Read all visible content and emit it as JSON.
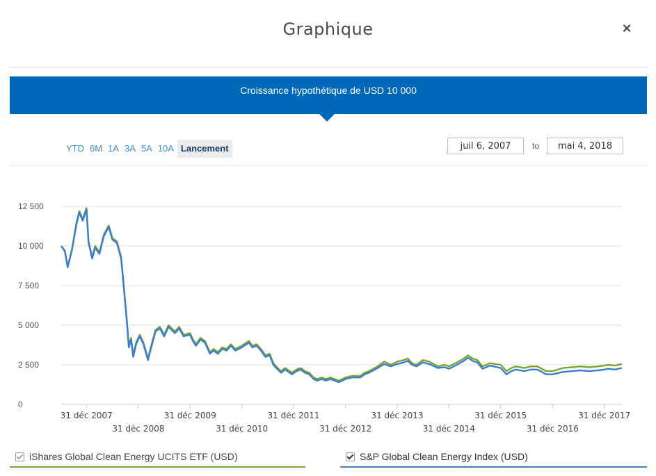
{
  "modal": {
    "title": "Graphique",
    "close_label": "×"
  },
  "banner": {
    "text": "Croissance hypothétique de USD 10 000"
  },
  "range_selector": {
    "buttons": [
      "YTD",
      "6M",
      "1A",
      "3A",
      "5A",
      "10A",
      "Lancement"
    ],
    "active": "Lancement"
  },
  "date_range": {
    "from": "juil 6, 2007",
    "to_label": "to",
    "to": "mai 4, 2018"
  },
  "legend": {
    "etf": {
      "label": "iShares Global Clean Energy UCITS ETF (USD)",
      "checked": true,
      "color": "#3a7ed1"
    },
    "index": {
      "label": "S&P Global Clean Energy Index (USD)",
      "checked": true,
      "color": "#7ba32d"
    }
  },
  "chart_data": {
    "type": "line",
    "title": "Croissance hypothétique de USD 10 000",
    "xlabel": "",
    "ylabel": "",
    "ylim": [
      0,
      12500
    ],
    "xlim": [
      "2007-07-06",
      "2018-05-04"
    ],
    "grid": true,
    "yticks": [
      0,
      2500,
      5000,
      7500,
      10000,
      12500
    ],
    "ytick_labels": [
      "0",
      "2 500",
      "5 000",
      "7 500",
      "10 000",
      "12 500"
    ],
    "xticks": [
      "2007-12-31",
      "2008-12-31",
      "2009-12-31",
      "2010-12-31",
      "2011-12-31",
      "2012-12-31",
      "2013-12-31",
      "2014-12-31",
      "2015-12-31",
      "2016-12-31",
      "2017-12-31"
    ],
    "xtick_labels": [
      "31 déc 2007",
      "31 déc 2008",
      "31 déc 2009",
      "31 déc 2010",
      "31 déc 2011",
      "31 déc 2012",
      "31 déc 2013",
      "31 déc 2014",
      "31 déc 2015",
      "31 déc 2016",
      "31 déc 2017"
    ],
    "series": [
      {
        "name": "S&P Global Clean Energy Index (USD)",
        "color": "#7ba32d",
        "points": [
          [
            "2007-07-06",
            10000
          ],
          [
            "2007-08-01",
            9700
          ],
          [
            "2007-08-20",
            8700
          ],
          [
            "2007-09-20",
            9800
          ],
          [
            "2007-10-20",
            11400
          ],
          [
            "2007-11-10",
            12200
          ],
          [
            "2007-12-05",
            11700
          ],
          [
            "2007-12-31",
            12400
          ],
          [
            "2008-01-15",
            10300
          ],
          [
            "2008-02-10",
            9300
          ],
          [
            "2008-03-01",
            10000
          ],
          [
            "2008-04-01",
            9600
          ],
          [
            "2008-05-01",
            10700
          ],
          [
            "2008-06-05",
            11300
          ],
          [
            "2008-07-01",
            10500
          ],
          [
            "2008-08-01",
            10300
          ],
          [
            "2008-09-01",
            9300
          ],
          [
            "2008-09-20",
            7400
          ],
          [
            "2008-10-10",
            5400
          ],
          [
            "2008-10-25",
            3700
          ],
          [
            "2008-11-10",
            4200
          ],
          [
            "2008-11-25",
            3100
          ],
          [
            "2008-12-15",
            3900
          ],
          [
            "2009-01-10",
            4400
          ],
          [
            "2009-02-05",
            3900
          ],
          [
            "2009-03-09",
            2900
          ],
          [
            "2009-04-01",
            3700
          ],
          [
            "2009-05-01",
            4700
          ],
          [
            "2009-06-01",
            4900
          ],
          [
            "2009-07-01",
            4400
          ],
          [
            "2009-08-01",
            5000
          ],
          [
            "2009-09-15",
            4600
          ],
          [
            "2009-10-15",
            4900
          ],
          [
            "2009-11-15",
            4400
          ],
          [
            "2009-12-31",
            4500
          ],
          [
            "2010-01-20",
            4100
          ],
          [
            "2010-02-10",
            3800
          ],
          [
            "2010-03-15",
            4200
          ],
          [
            "2010-04-15",
            4000
          ],
          [
            "2010-05-20",
            3300
          ],
          [
            "2010-06-15",
            3500
          ],
          [
            "2010-07-15",
            3300
          ],
          [
            "2010-08-15",
            3600
          ],
          [
            "2010-09-15",
            3500
          ],
          [
            "2010-10-15",
            3800
          ],
          [
            "2010-11-15",
            3500
          ],
          [
            "2010-12-31",
            3700
          ],
          [
            "2011-01-15",
            3800
          ],
          [
            "2011-02-20",
            4000
          ],
          [
            "2011-03-15",
            3700
          ],
          [
            "2011-04-15",
            3800
          ],
          [
            "2011-05-15",
            3500
          ],
          [
            "2011-06-15",
            3100
          ],
          [
            "2011-07-15",
            3200
          ],
          [
            "2011-08-10",
            2600
          ],
          [
            "2011-09-10",
            2300
          ],
          [
            "2011-10-04",
            2100
          ],
          [
            "2011-11-01",
            2300
          ],
          [
            "2011-12-20",
            2000
          ],
          [
            "2012-01-20",
            2200
          ],
          [
            "2012-02-20",
            2300
          ],
          [
            "2012-03-20",
            2100
          ],
          [
            "2012-04-20",
            2000
          ],
          [
            "2012-05-20",
            1700
          ],
          [
            "2012-06-15",
            1600
          ],
          [
            "2012-07-15",
            1700
          ],
          [
            "2012-08-15",
            1600
          ],
          [
            "2012-09-15",
            1700
          ],
          [
            "2012-10-15",
            1600
          ],
          [
            "2012-11-15",
            1500
          ],
          [
            "2012-12-31",
            1700
          ],
          [
            "2013-02-15",
            1800
          ],
          [
            "2013-04-15",
            1800
          ],
          [
            "2013-05-15",
            2000
          ],
          [
            "2013-06-15",
            2100
          ],
          [
            "2013-08-15",
            2400
          ],
          [
            "2013-10-01",
            2700
          ],
          [
            "2013-11-15",
            2500
          ],
          [
            "2013-12-31",
            2700
          ],
          [
            "2014-02-15",
            2800
          ],
          [
            "2014-03-15",
            2900
          ],
          [
            "2014-04-15",
            2600
          ],
          [
            "2014-05-15",
            2500
          ],
          [
            "2014-06-30",
            2800
          ],
          [
            "2014-08-15",
            2700
          ],
          [
            "2014-10-15",
            2400
          ],
          [
            "2014-11-30",
            2500
          ],
          [
            "2014-12-31",
            2400
          ],
          [
            "2015-02-15",
            2600
          ],
          [
            "2015-04-15",
            2900
          ],
          [
            "2015-05-15",
            3100
          ],
          [
            "2015-06-15",
            2900
          ],
          [
            "2015-07-20",
            2800
          ],
          [
            "2015-08-25",
            2400
          ],
          [
            "2015-10-15",
            2600
          ],
          [
            "2015-12-31",
            2500
          ],
          [
            "2016-02-10",
            2100
          ],
          [
            "2016-03-15",
            2300
          ],
          [
            "2016-04-15",
            2400
          ],
          [
            "2016-06-15",
            2300
          ],
          [
            "2016-07-30",
            2400
          ],
          [
            "2016-09-15",
            2400
          ],
          [
            "2016-11-15",
            2100
          ],
          [
            "2016-12-31",
            2100
          ],
          [
            "2017-03-15",
            2300
          ],
          [
            "2017-05-15",
            2350
          ],
          [
            "2017-07-15",
            2400
          ],
          [
            "2017-09-15",
            2350
          ],
          [
            "2017-11-15",
            2400
          ],
          [
            "2017-12-31",
            2450
          ],
          [
            "2018-01-25",
            2500
          ],
          [
            "2018-03-15",
            2450
          ],
          [
            "2018-05-04",
            2550
          ]
        ]
      },
      {
        "name": "iShares Global Clean Energy UCITS ETF (USD)",
        "color": "#3a7ed1",
        "points": [
          [
            "2007-07-06",
            10000
          ],
          [
            "2007-08-01",
            9650
          ],
          [
            "2007-08-20",
            8650
          ],
          [
            "2007-09-20",
            9750
          ],
          [
            "2007-10-20",
            11300
          ],
          [
            "2007-11-10",
            12100
          ],
          [
            "2007-12-05",
            11600
          ],
          [
            "2007-12-31",
            12300
          ],
          [
            "2008-01-15",
            10200
          ],
          [
            "2008-02-10",
            9200
          ],
          [
            "2008-03-01",
            9900
          ],
          [
            "2008-04-01",
            9500
          ],
          [
            "2008-05-01",
            10600
          ],
          [
            "2008-06-05",
            11200
          ],
          [
            "2008-07-01",
            10400
          ],
          [
            "2008-08-01",
            10200
          ],
          [
            "2008-09-01",
            9200
          ],
          [
            "2008-09-20",
            7300
          ],
          [
            "2008-10-10",
            5300
          ],
          [
            "2008-10-25",
            3600
          ],
          [
            "2008-11-10",
            4100
          ],
          [
            "2008-11-25",
            3000
          ],
          [
            "2008-12-15",
            3800
          ],
          [
            "2009-01-10",
            4300
          ],
          [
            "2009-02-05",
            3800
          ],
          [
            "2009-03-09",
            2800
          ],
          [
            "2009-04-01",
            3600
          ],
          [
            "2009-05-01",
            4600
          ],
          [
            "2009-06-01",
            4800
          ],
          [
            "2009-07-01",
            4300
          ],
          [
            "2009-08-01",
            4900
          ],
          [
            "2009-09-15",
            4500
          ],
          [
            "2009-10-15",
            4800
          ],
          [
            "2009-11-15",
            4300
          ],
          [
            "2009-12-31",
            4400
          ],
          [
            "2010-01-20",
            4000
          ],
          [
            "2010-02-10",
            3700
          ],
          [
            "2010-03-15",
            4100
          ],
          [
            "2010-04-15",
            3900
          ],
          [
            "2010-05-20",
            3200
          ],
          [
            "2010-06-15",
            3400
          ],
          [
            "2010-07-15",
            3200
          ],
          [
            "2010-08-15",
            3500
          ],
          [
            "2010-09-15",
            3400
          ],
          [
            "2010-10-15",
            3700
          ],
          [
            "2010-11-15",
            3400
          ],
          [
            "2010-12-31",
            3600
          ],
          [
            "2011-01-15",
            3700
          ],
          [
            "2011-02-20",
            3900
          ],
          [
            "2011-03-15",
            3600
          ],
          [
            "2011-04-15",
            3700
          ],
          [
            "2011-05-15",
            3400
          ],
          [
            "2011-06-15",
            3000
          ],
          [
            "2011-07-15",
            3100
          ],
          [
            "2011-08-10",
            2500
          ],
          [
            "2011-09-10",
            2200
          ],
          [
            "2011-10-04",
            2000
          ],
          [
            "2011-11-01",
            2200
          ],
          [
            "2011-12-20",
            1900
          ],
          [
            "2012-01-20",
            2100
          ],
          [
            "2012-02-20",
            2200
          ],
          [
            "2012-03-20",
            2000
          ],
          [
            "2012-04-20",
            1900
          ],
          [
            "2012-05-20",
            1600
          ],
          [
            "2012-06-15",
            1500
          ],
          [
            "2012-07-15",
            1600
          ],
          [
            "2012-08-15",
            1500
          ],
          [
            "2012-09-15",
            1600
          ],
          [
            "2012-10-15",
            1500
          ],
          [
            "2012-11-15",
            1400
          ],
          [
            "2012-12-31",
            1600
          ],
          [
            "2013-02-15",
            1700
          ],
          [
            "2013-04-15",
            1700
          ],
          [
            "2013-05-15",
            1900
          ],
          [
            "2013-06-15",
            2000
          ],
          [
            "2013-08-15",
            2300
          ],
          [
            "2013-10-01",
            2550
          ],
          [
            "2013-11-15",
            2400
          ],
          [
            "2013-12-31",
            2550
          ],
          [
            "2014-02-15",
            2650
          ],
          [
            "2014-03-15",
            2750
          ],
          [
            "2014-04-15",
            2500
          ],
          [
            "2014-05-15",
            2400
          ],
          [
            "2014-06-30",
            2650
          ],
          [
            "2014-08-15",
            2550
          ],
          [
            "2014-10-15",
            2300
          ],
          [
            "2014-11-30",
            2350
          ],
          [
            "2014-12-31",
            2250
          ],
          [
            "2015-02-15",
            2450
          ],
          [
            "2015-04-15",
            2750
          ],
          [
            "2015-05-15",
            2950
          ],
          [
            "2015-06-15",
            2750
          ],
          [
            "2015-07-20",
            2650
          ],
          [
            "2015-08-25",
            2250
          ],
          [
            "2015-10-15",
            2450
          ],
          [
            "2015-12-31",
            2300
          ],
          [
            "2016-02-10",
            1900
          ],
          [
            "2016-03-15",
            2100
          ],
          [
            "2016-04-15",
            2200
          ],
          [
            "2016-06-15",
            2100
          ],
          [
            "2016-07-30",
            2200
          ],
          [
            "2016-09-15",
            2200
          ],
          [
            "2016-11-15",
            1900
          ],
          [
            "2016-12-31",
            1900
          ],
          [
            "2017-03-15",
            2050
          ],
          [
            "2017-05-15",
            2100
          ],
          [
            "2017-07-15",
            2150
          ],
          [
            "2017-09-15",
            2100
          ],
          [
            "2017-11-15",
            2150
          ],
          [
            "2017-12-31",
            2200
          ],
          [
            "2018-01-25",
            2250
          ],
          [
            "2018-03-15",
            2200
          ],
          [
            "2018-05-04",
            2300
          ]
        ]
      }
    ]
  }
}
